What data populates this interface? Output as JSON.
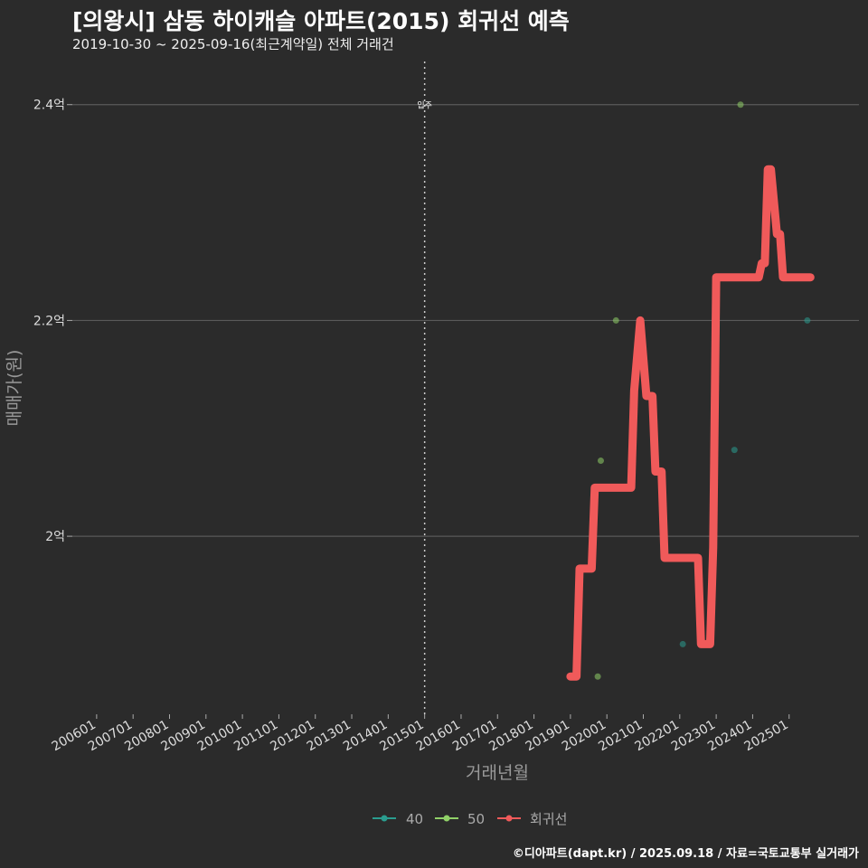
{
  "chart_data": {
    "type": "line",
    "title": "[의왕시] 삼동 하이캐슬 아파트(2015) 회귀선 예측",
    "subtitle": "2019-10-30 ~ 2025-09-16(최근계약일) 전체 거래건",
    "xlabel": "거래년월",
    "ylabel": "매매가(원)",
    "x_ticks": [
      "200601",
      "200701",
      "200801",
      "200901",
      "201001",
      "201101",
      "201201",
      "201301",
      "201401",
      "201501",
      "201601",
      "201701",
      "201801",
      "201901",
      "202001",
      "202101",
      "202201",
      "202301",
      "202401",
      "202501"
    ],
    "y_ticks": [
      {
        "value": 2.0,
        "label": "2억"
      },
      {
        "value": 2.2,
        "label": "2.2억"
      },
      {
        "value": 2.4,
        "label": "2.4억"
      }
    ],
    "xlim": [
      "2005-05",
      "2026-12"
    ],
    "ylim": [
      1.835,
      2.44
    ],
    "vline": {
      "x": "2015-01",
      "label": "입주"
    },
    "legend_position": "bottom",
    "legend": [
      {
        "name": "40",
        "color": "#2a9d8f"
      },
      {
        "name": "50",
        "color": "#90d068"
      },
      {
        "name": "회귀선",
        "color": "#f05a5a"
      }
    ],
    "series": [
      {
        "name": "40",
        "type": "scatter",
        "color": "#2a9d8f",
        "points": [
          {
            "x": "2022-02",
            "y": 1.9
          },
          {
            "x": "2023-07",
            "y": 2.08
          },
          {
            "x": "2025-07",
            "y": 2.2
          }
        ]
      },
      {
        "name": "50",
        "type": "scatter",
        "color": "#90d068",
        "points": [
          {
            "x": "2019-10",
            "y": 1.87
          },
          {
            "x": "2019-11",
            "y": 2.07
          },
          {
            "x": "2020-04",
            "y": 2.2
          },
          {
            "x": "2021-07",
            "y": 2.06
          },
          {
            "x": "2023-09",
            "y": 2.4
          }
        ]
      },
      {
        "name": "회귀선",
        "type": "line",
        "color": "#f05a5a",
        "points": [
          {
            "x": "2019-01",
            "y": 1.87
          },
          {
            "x": "2019-03",
            "y": 1.87
          },
          {
            "x": "2019-04",
            "y": 1.97
          },
          {
            "x": "2019-08",
            "y": 1.97
          },
          {
            "x": "2019-09",
            "y": 2.045
          },
          {
            "x": "2020-09",
            "y": 2.045
          },
          {
            "x": "2020-10",
            "y": 2.135
          },
          {
            "x": "2020-12",
            "y": 2.2
          },
          {
            "x": "2021-02",
            "y": 2.13
          },
          {
            "x": "2021-04",
            "y": 2.13
          },
          {
            "x": "2021-05",
            "y": 2.06
          },
          {
            "x": "2021-07",
            "y": 2.06
          },
          {
            "x": "2021-08",
            "y": 1.98
          },
          {
            "x": "2022-07",
            "y": 1.98
          },
          {
            "x": "2022-08",
            "y": 1.9
          },
          {
            "x": "2022-11",
            "y": 1.9
          },
          {
            "x": "2022-12",
            "y": 1.99
          },
          {
            "x": "2023-01",
            "y": 2.24
          },
          {
            "x": "2024-03",
            "y": 2.24
          },
          {
            "x": "2024-04",
            "y": 2.253
          },
          {
            "x": "2024-05",
            "y": 2.253
          },
          {
            "x": "2024-06",
            "y": 2.34
          },
          {
            "x": "2024-07",
            "y": 2.34
          },
          {
            "x": "2024-09",
            "y": 2.28
          },
          {
            "x": "2024-10",
            "y": 2.28
          },
          {
            "x": "2024-11",
            "y": 2.24
          },
          {
            "x": "2025-08",
            "y": 2.24
          }
        ]
      }
    ]
  },
  "caption": "©디아파트(dapt.kr) / 2025.09.18 / 자료=국토교통부 실거래가"
}
